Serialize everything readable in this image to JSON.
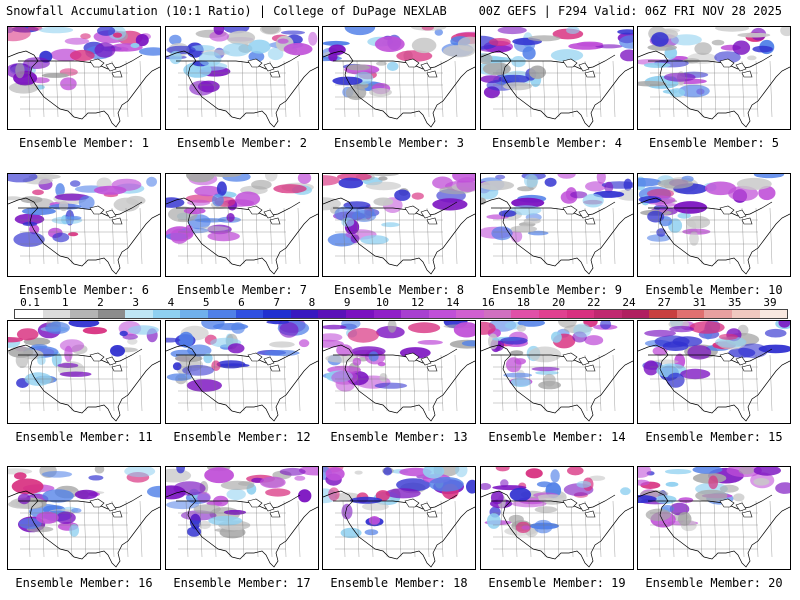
{
  "header": {
    "left": "Snowfall Accumulation (10:1 Ratio) | College of DuPage NEXLAB",
    "right": "00Z GEFS | F294 Valid: 06Z FRI NOV 28 2025"
  },
  "members": [
    "Ensemble Member: 1",
    "Ensemble Member: 2",
    "Ensemble Member: 3",
    "Ensemble Member: 4",
    "Ensemble Member: 5",
    "Ensemble Member: 6",
    "Ensemble Member: 7",
    "Ensemble Member: 8",
    "Ensemble Member: 9",
    "Ensemble Member: 10",
    "Ensemble Member: 11",
    "Ensemble Member: 12",
    "Ensemble Member: 13",
    "Ensemble Member: 14",
    "Ensemble Member: 15",
    "Ensemble Member: 16",
    "Ensemble Member: 17",
    "Ensemble Member: 18",
    "Ensemble Member: 19",
    "Ensemble Member: 20"
  ],
  "colorbar": {
    "labels": [
      "0.1",
      "1",
      "2",
      "3",
      "4",
      "5",
      "6",
      "7",
      "8",
      "9",
      "10",
      "12",
      "14",
      "16",
      "18",
      "20",
      "22",
      "24",
      "27",
      "31",
      "35",
      "39"
    ],
    "colors": [
      "#ffffff",
      "#dcdcdc",
      "#b4b4b4",
      "#8c8c8c",
      "#bfe6f5",
      "#8fd0f0",
      "#70b0ec",
      "#5080e8",
      "#3050e0",
      "#2030d0",
      "#3818c0",
      "#5a10b8",
      "#7a10c0",
      "#9020c8",
      "#a840d0",
      "#c050d8",
      "#d060d0",
      "#d070c0",
      "#e050a8",
      "#e04090",
      "#d83080",
      "#c02870",
      "#b02060",
      "#c84040",
      "#e07070",
      "#e8a0a0",
      "#f0c8c0",
      "#f8e8e0"
    ]
  }
}
